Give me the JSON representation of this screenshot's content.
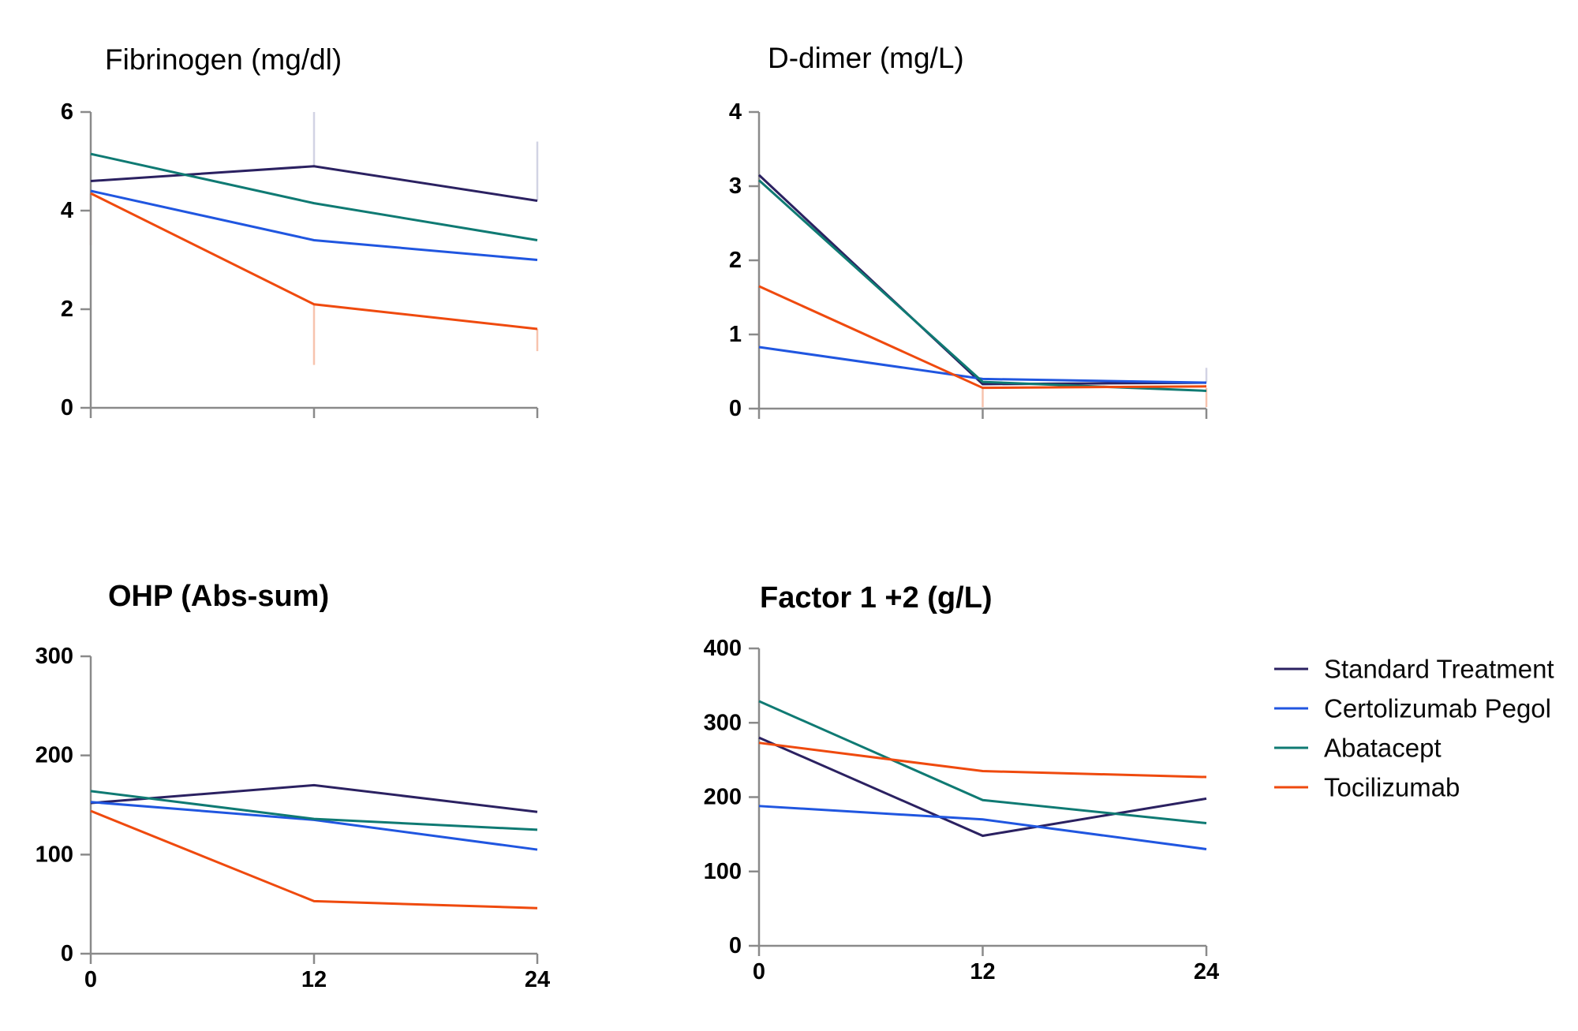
{
  "page": {
    "background": "#ffffff"
  },
  "style": {
    "axis_color": "#8a8a8a",
    "error_bar_pink": "#f7c3ae",
    "error_bar_lavender": "#d2d3e4"
  },
  "colors": {
    "standard_treatment": "#2b2161",
    "certolizumab_pegol": "#2056e0",
    "abatacept": "#0f7a73",
    "tocilizumab": "#ef4a0e"
  },
  "legend": {
    "items": [
      {
        "label": "Standard Treatment",
        "color": "#2b2161"
      },
      {
        "label": "Certolizumab Pegol",
        "color": "#2056e0"
      },
      {
        "label": "Abatacept",
        "color": "#0f7a73"
      },
      {
        "label": "Tocilizumab",
        "color": "#ef4a0e"
      }
    ],
    "position": "right-middle"
  },
  "chart_data": [
    {
      "type": "line",
      "title": "Fibrinogen (mg/dl)",
      "x": [
        0,
        12,
        24
      ],
      "xlim": [
        0,
        24
      ],
      "xticks": [
        0,
        12,
        24
      ],
      "show_x_labels": false,
      "ylim": [
        0,
        6
      ],
      "yticks": [
        0,
        2,
        4,
        6
      ],
      "grid": false,
      "series": [
        {
          "name": "Standard Treatment",
          "color": "#2b2161",
          "values": [
            4.6,
            4.9,
            4.2
          ]
        },
        {
          "name": "Certolizumab Pegol",
          "color": "#2056e0",
          "values": [
            4.4,
            3.4,
            3.0
          ]
        },
        {
          "name": "Abatacept",
          "color": "#0f7a73",
          "values": [
            5.15,
            4.15,
            3.4
          ]
        },
        {
          "name": "Tocilizumab",
          "color": "#ef4a0e",
          "values": [
            4.35,
            2.1,
            1.6
          ]
        }
      ],
      "error_bars": [
        {
          "x": 0,
          "from": 4.35,
          "to": 3.3,
          "color": "#f7c3ae"
        },
        {
          "x": 12,
          "from": 4.9,
          "to": 6.0,
          "color": "#d2d3e4"
        },
        {
          "x": 12,
          "from": 2.1,
          "to": 0.87,
          "color": "#f7c3ae"
        },
        {
          "x": 24,
          "from": 4.2,
          "to": 5.4,
          "color": "#d2d3e4"
        },
        {
          "x": 24,
          "from": 1.6,
          "to": 1.15,
          "color": "#f7c3ae"
        }
      ]
    },
    {
      "type": "line",
      "title": "D-dimer (mg/L)",
      "x": [
        0,
        12,
        24
      ],
      "xlim": [
        0,
        24
      ],
      "xticks": [
        0,
        12,
        24
      ],
      "show_x_labels": false,
      "ylim": [
        0,
        4
      ],
      "yticks": [
        0,
        1,
        2,
        3,
        4
      ],
      "grid": false,
      "series": [
        {
          "name": "Standard Treatment",
          "color": "#2b2161",
          "values": [
            3.15,
            0.33,
            0.35
          ]
        },
        {
          "name": "Certolizumab Pegol",
          "color": "#2056e0",
          "values": [
            0.83,
            0.4,
            0.35
          ]
        },
        {
          "name": "Abatacept",
          "color": "#0f7a73",
          "values": [
            3.08,
            0.36,
            0.24
          ]
        },
        {
          "name": "Tocilizumab",
          "color": "#ef4a0e",
          "values": [
            1.65,
            0.28,
            0.3
          ]
        }
      ],
      "error_bars": [
        {
          "x": 0,
          "from": 1.65,
          "to": 0.85,
          "color": "#f7c3ae"
        },
        {
          "x": 12,
          "from": 0.28,
          "to": 0.02,
          "color": "#f7c3ae"
        },
        {
          "x": 24,
          "from": 0.35,
          "to": 0.55,
          "color": "#d2d3e4"
        },
        {
          "x": 24,
          "from": 0.28,
          "to": 0.02,
          "color": "#f7c3ae"
        }
      ]
    },
    {
      "type": "line",
      "title": "OHP (Abs-sum)",
      "x": [
        0,
        12,
        24
      ],
      "xlim": [
        0,
        24
      ],
      "xticks": [
        0,
        12,
        24
      ],
      "show_x_labels": true,
      "ylim": [
        0,
        300
      ],
      "yticks": [
        0,
        100,
        200,
        300
      ],
      "grid": false,
      "series": [
        {
          "name": "Standard Treatment",
          "color": "#2b2161",
          "values": [
            152,
            170,
            143
          ]
        },
        {
          "name": "Certolizumab Pegol",
          "color": "#2056e0",
          "values": [
            153,
            135,
            105
          ]
        },
        {
          "name": "Abatacept",
          "color": "#0f7a73",
          "values": [
            164,
            136,
            125
          ]
        },
        {
          "name": "Tocilizumab",
          "color": "#ef4a0e",
          "values": [
            144,
            53,
            46
          ]
        }
      ],
      "error_bars": []
    },
    {
      "type": "line",
      "title": "Factor 1 +2 (g/L)",
      "x": [
        0,
        12,
        24
      ],
      "xlim": [
        0,
        24
      ],
      "xticks": [
        0,
        12,
        24
      ],
      "show_x_labels": true,
      "ylim": [
        0,
        400
      ],
      "yticks": [
        0,
        100,
        200,
        300,
        400
      ],
      "grid": false,
      "series": [
        {
          "name": "Standard Treatment",
          "color": "#2b2161",
          "values": [
            280,
            148,
            198
          ]
        },
        {
          "name": "Certolizumab Pegol",
          "color": "#2056e0",
          "values": [
            188,
            170,
            130
          ]
        },
        {
          "name": "Abatacept",
          "color": "#0f7a73",
          "values": [
            329,
            196,
            165
          ]
        },
        {
          "name": "Tocilizumab",
          "color": "#ef4a0e",
          "values": [
            273,
            235,
            227
          ]
        }
      ],
      "error_bars": []
    }
  ]
}
